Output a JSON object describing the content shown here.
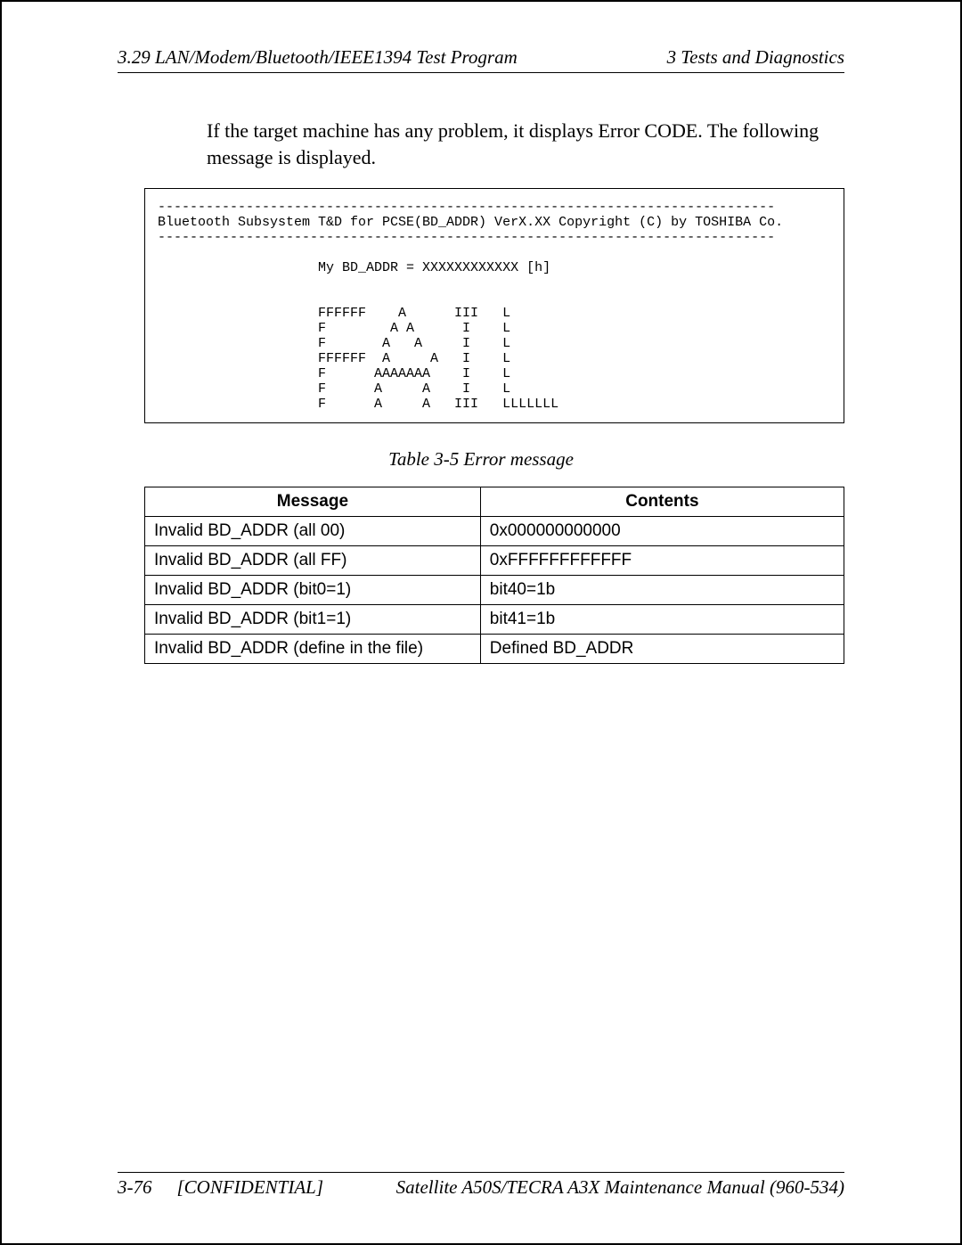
{
  "header": {
    "left": "3.29  LAN/Modem/Bluetooth/IEEE1394 Test Program",
    "right": "3  Tests and Diagnostics"
  },
  "body_paragraph": "If the target machine has any problem, it displays Error CODE. The following message is displayed.",
  "code_block": "-----------------------------------------------------------------------------\nBluetooth Subsystem T&D for PCSE(BD_ADDR) VerX.XX Copyright (C) by TOSHIBA Co.\n-----------------------------------------------------------------------------\n\n                    My BD_ADDR = XXXXXXXXXXXX [h]\n\n\n                    FFFFFF    A      III   L\n                    F        A A      I    L\n                    F       A   A     I    L\n                    FFFFFF  A     A   I    L\n                    F      AAAAAAA    I    L\n                    F      A     A    I    L\n                    F      A     A   III   LLLLLLL\n",
  "table": {
    "caption": "Table 3-5  Error message",
    "columns": [
      "Message",
      "Contents"
    ],
    "rows": [
      [
        "Invalid BD_ADDR (all 00)",
        "0x000000000000"
      ],
      [
        "Invalid BD_ADDR (all FF)",
        "0xFFFFFFFFFFFF"
      ],
      [
        "Invalid BD_ADDR (bit0=1)",
        "bit40=1b"
      ],
      [
        "Invalid BD_ADDR (bit1=1)",
        "bit41=1b"
      ],
      [
        "Invalid BD_ADDR (define in the file)",
        "Defined BD_ADDR"
      ]
    ]
  },
  "footer": {
    "page_num": "3-76",
    "confidential": "[CONFIDENTIAL]",
    "manual": "Satellite A50S/TECRA A3X  Maintenance Manual (960-534)"
  },
  "styles": {
    "page_border_color": "#000000",
    "background_color": "#ffffff",
    "text_color": "#000000",
    "body_font_size_pt": 16,
    "code_font_size_pt": 11,
    "table_font_size_pt": 14
  }
}
